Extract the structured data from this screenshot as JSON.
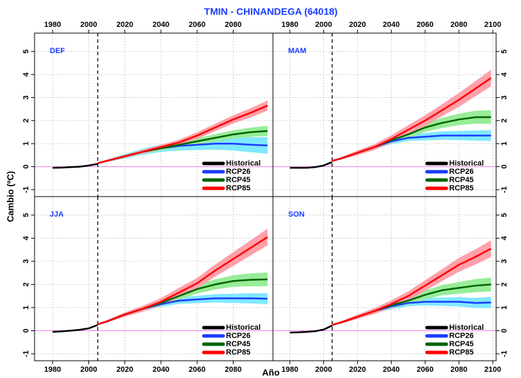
{
  "title": "TMIN  - CHINANDEGA (64018)",
  "x_label": "Año",
  "y_label": "Cambio (ºC)",
  "chart_data": [
    {
      "type": "line",
      "label": "DEF",
      "grid": true,
      "vline": 2005,
      "hline": 0,
      "legend": "lower right",
      "x": [
        1980,
        1985,
        1990,
        1995,
        2000,
        2005,
        2010,
        2020,
        2030,
        2040,
        2050,
        2060,
        2070,
        2080,
        2090,
        2099
      ],
      "xlim": [
        1970,
        2102
      ],
      "xticks": [
        1980,
        2000,
        2020,
        2040,
        2060,
        2080
      ],
      "ylim": [
        -1.3,
        5.8
      ],
      "yticks": [
        -1,
        0,
        1,
        2,
        3,
        4,
        5
      ],
      "series": [
        {
          "name": "Historical",
          "color": "#000000",
          "values": [
            -0.05,
            -0.04,
            -0.02,
            0.0,
            0.05,
            0.12,
            null,
            null,
            null,
            null,
            null,
            null,
            null,
            null,
            null,
            null
          ]
        },
        {
          "name": "RCP26",
          "color": "#1a3cff",
          "band_color": "#80e8ff",
          "values": [
            null,
            null,
            null,
            null,
            null,
            0.15,
            0.25,
            0.45,
            0.65,
            0.8,
            0.9,
            0.95,
            1.0,
            1.0,
            0.95,
            0.92
          ],
          "band": [
            null,
            null,
            null,
            null,
            null,
            0,
            0.05,
            0.1,
            0.13,
            0.16,
            0.2,
            0.23,
            0.26,
            0.3,
            0.33,
            0.36
          ]
        },
        {
          "name": "RCP45",
          "color": "#006400",
          "band_color": "#98ec98",
          "values": [
            null,
            null,
            null,
            null,
            null,
            0.15,
            0.25,
            0.45,
            0.65,
            0.8,
            0.95,
            1.1,
            1.25,
            1.4,
            1.5,
            1.55
          ],
          "band": [
            null,
            null,
            null,
            null,
            null,
            0,
            0.04,
            0.06,
            0.08,
            0.1,
            0.12,
            0.14,
            0.16,
            0.18,
            0.2,
            0.22
          ]
        },
        {
          "name": "RCP85",
          "color": "#ff0000",
          "band_color": "#ffa0aa",
          "values": [
            null,
            null,
            null,
            null,
            null,
            0.15,
            0.25,
            0.45,
            0.65,
            0.85,
            1.05,
            1.35,
            1.7,
            2.05,
            2.35,
            2.65
          ],
          "band": [
            null,
            null,
            null,
            null,
            null,
            0,
            0.04,
            0.06,
            0.08,
            0.1,
            0.12,
            0.14,
            0.16,
            0.18,
            0.2,
            0.22
          ]
        }
      ]
    },
    {
      "type": "line",
      "label": "MAM",
      "grid": true,
      "vline": 2005,
      "hline": 0,
      "legend": "lower right",
      "x": [
        1980,
        1985,
        1990,
        1995,
        2000,
        2005,
        2010,
        2020,
        2030,
        2040,
        2050,
        2060,
        2070,
        2080,
        2090,
        2099
      ],
      "xlim": [
        1970,
        2102
      ],
      "xticks": [
        1980,
        2000,
        2020,
        2040,
        2060,
        2080,
        2100
      ],
      "ylim": [
        -1.3,
        5.8
      ],
      "yticks": [
        -1,
        0,
        1,
        2,
        3,
        4,
        5
      ],
      "series": [
        {
          "name": "Historical",
          "color": "#000000",
          "values": [
            -0.05,
            -0.05,
            -0.05,
            -0.02,
            0.05,
            0.2,
            null,
            null,
            null,
            null,
            null,
            null,
            null,
            null,
            null,
            null
          ]
        },
        {
          "name": "RCP26",
          "color": "#1a3cff",
          "band_color": "#80e8ff",
          "values": [
            null,
            null,
            null,
            null,
            null,
            0.25,
            0.35,
            0.6,
            0.85,
            1.1,
            1.25,
            1.3,
            1.35,
            1.35,
            1.35,
            1.35
          ],
          "band": [
            null,
            null,
            null,
            null,
            null,
            0,
            0.04,
            0.07,
            0.1,
            0.12,
            0.14,
            0.16,
            0.18,
            0.2,
            0.22,
            0.24
          ]
        },
        {
          "name": "RCP45",
          "color": "#006400",
          "band_color": "#98ec98",
          "values": [
            null,
            null,
            null,
            null,
            null,
            0.25,
            0.35,
            0.6,
            0.85,
            1.15,
            1.4,
            1.7,
            1.9,
            2.05,
            2.15,
            2.15
          ],
          "band": [
            null,
            null,
            null,
            null,
            null,
            0,
            0.04,
            0.07,
            0.1,
            0.13,
            0.16,
            0.19,
            0.22,
            0.25,
            0.28,
            0.3
          ]
        },
        {
          "name": "RCP85",
          "color": "#ff0000",
          "band_color": "#ffa0aa",
          "values": [
            null,
            null,
            null,
            null,
            null,
            0.25,
            0.35,
            0.6,
            0.85,
            1.2,
            1.6,
            2.0,
            2.45,
            2.9,
            3.4,
            3.85
          ],
          "band": [
            null,
            null,
            null,
            null,
            null,
            0,
            0.05,
            0.1,
            0.13,
            0.16,
            0.2,
            0.23,
            0.26,
            0.3,
            0.33,
            0.36
          ]
        }
      ]
    },
    {
      "type": "line",
      "label": "JJA",
      "grid": true,
      "vline": 2005,
      "hline": 0,
      "legend": "lower right",
      "x": [
        1980,
        1985,
        1990,
        1995,
        2000,
        2005,
        2010,
        2020,
        2030,
        2040,
        2050,
        2060,
        2070,
        2080,
        2090,
        2099
      ],
      "xlim": [
        1970,
        2102
      ],
      "xticks": [
        1980,
        2000,
        2020,
        2040,
        2060,
        2080
      ],
      "ylim": [
        -1.3,
        5.8
      ],
      "yticks": [
        -1,
        0,
        1,
        2,
        3,
        4,
        5
      ],
      "series": [
        {
          "name": "Historical",
          "color": "#000000",
          "values": [
            -0.05,
            -0.03,
            0.0,
            0.04,
            0.1,
            0.25,
            null,
            null,
            null,
            null,
            null,
            null,
            null,
            null,
            null,
            null
          ]
        },
        {
          "name": "RCP26",
          "color": "#1a3cff",
          "band_color": "#80e8ff",
          "values": [
            null,
            null,
            null,
            null,
            null,
            0.28,
            0.4,
            0.7,
            0.95,
            1.15,
            1.3,
            1.35,
            1.4,
            1.4,
            1.4,
            1.38
          ],
          "band": [
            null,
            null,
            null,
            null,
            null,
            0,
            0.04,
            0.07,
            0.1,
            0.12,
            0.14,
            0.16,
            0.18,
            0.2,
            0.22,
            0.24
          ]
        },
        {
          "name": "RCP45",
          "color": "#006400",
          "band_color": "#98ec98",
          "values": [
            null,
            null,
            null,
            null,
            null,
            0.28,
            0.4,
            0.7,
            0.95,
            1.2,
            1.5,
            1.8,
            2.0,
            2.15,
            2.2,
            2.22
          ],
          "band": [
            null,
            null,
            null,
            null,
            null,
            0,
            0.04,
            0.07,
            0.1,
            0.13,
            0.16,
            0.19,
            0.22,
            0.25,
            0.28,
            0.3
          ]
        },
        {
          "name": "RCP85",
          "color": "#ff0000",
          "band_color": "#ffa0aa",
          "values": [
            null,
            null,
            null,
            null,
            null,
            0.28,
            0.4,
            0.7,
            0.95,
            1.25,
            1.65,
            2.05,
            2.6,
            3.1,
            3.6,
            4.05
          ],
          "band": [
            null,
            null,
            null,
            null,
            null,
            0,
            0.05,
            0.1,
            0.13,
            0.16,
            0.2,
            0.23,
            0.26,
            0.3,
            0.33,
            0.36
          ]
        }
      ]
    },
    {
      "type": "line",
      "label": "SON",
      "grid": true,
      "vline": 2005,
      "hline": 0,
      "legend": "lower right",
      "x": [
        1980,
        1985,
        1990,
        1995,
        2000,
        2005,
        2010,
        2020,
        2030,
        2040,
        2050,
        2060,
        2070,
        2080,
        2090,
        2099
      ],
      "xlim": [
        1970,
        2102
      ],
      "xticks": [
        1980,
        2000,
        2020,
        2040,
        2060,
        2080,
        2100
      ],
      "ylim": [
        -1.3,
        5.8
      ],
      "yticks": [
        -1,
        0,
        1,
        2,
        3,
        4,
        5
      ],
      "series": [
        {
          "name": "Historical",
          "color": "#000000",
          "values": [
            -0.08,
            -0.07,
            -0.05,
            -0.02,
            0.05,
            0.22,
            null,
            null,
            null,
            null,
            null,
            null,
            null,
            null,
            null,
            null
          ]
        },
        {
          "name": "RCP26",
          "color": "#1a3cff",
          "band_color": "#80e8ff",
          "values": [
            null,
            null,
            null,
            null,
            null,
            0.25,
            0.35,
            0.6,
            0.85,
            1.05,
            1.2,
            1.25,
            1.25,
            1.25,
            1.2,
            1.22
          ],
          "band": [
            null,
            null,
            null,
            null,
            null,
            0,
            0.04,
            0.07,
            0.1,
            0.12,
            0.14,
            0.16,
            0.18,
            0.2,
            0.22,
            0.24
          ]
        },
        {
          "name": "RCP45",
          "color": "#006400",
          "band_color": "#98ec98",
          "values": [
            null,
            null,
            null,
            null,
            null,
            0.25,
            0.35,
            0.6,
            0.85,
            1.1,
            1.3,
            1.55,
            1.75,
            1.85,
            1.95,
            2.0
          ],
          "band": [
            null,
            null,
            null,
            null,
            null,
            0,
            0.04,
            0.07,
            0.1,
            0.13,
            0.16,
            0.19,
            0.22,
            0.25,
            0.28,
            0.3
          ]
        },
        {
          "name": "RCP85",
          "color": "#ff0000",
          "band_color": "#ffa0aa",
          "values": [
            null,
            null,
            null,
            null,
            null,
            0.25,
            0.35,
            0.6,
            0.85,
            1.15,
            1.5,
            1.95,
            2.4,
            2.85,
            3.2,
            3.55
          ],
          "band": [
            null,
            null,
            null,
            null,
            null,
            0,
            0.05,
            0.1,
            0.13,
            0.16,
            0.2,
            0.23,
            0.26,
            0.3,
            0.33,
            0.36
          ]
        }
      ]
    }
  ]
}
